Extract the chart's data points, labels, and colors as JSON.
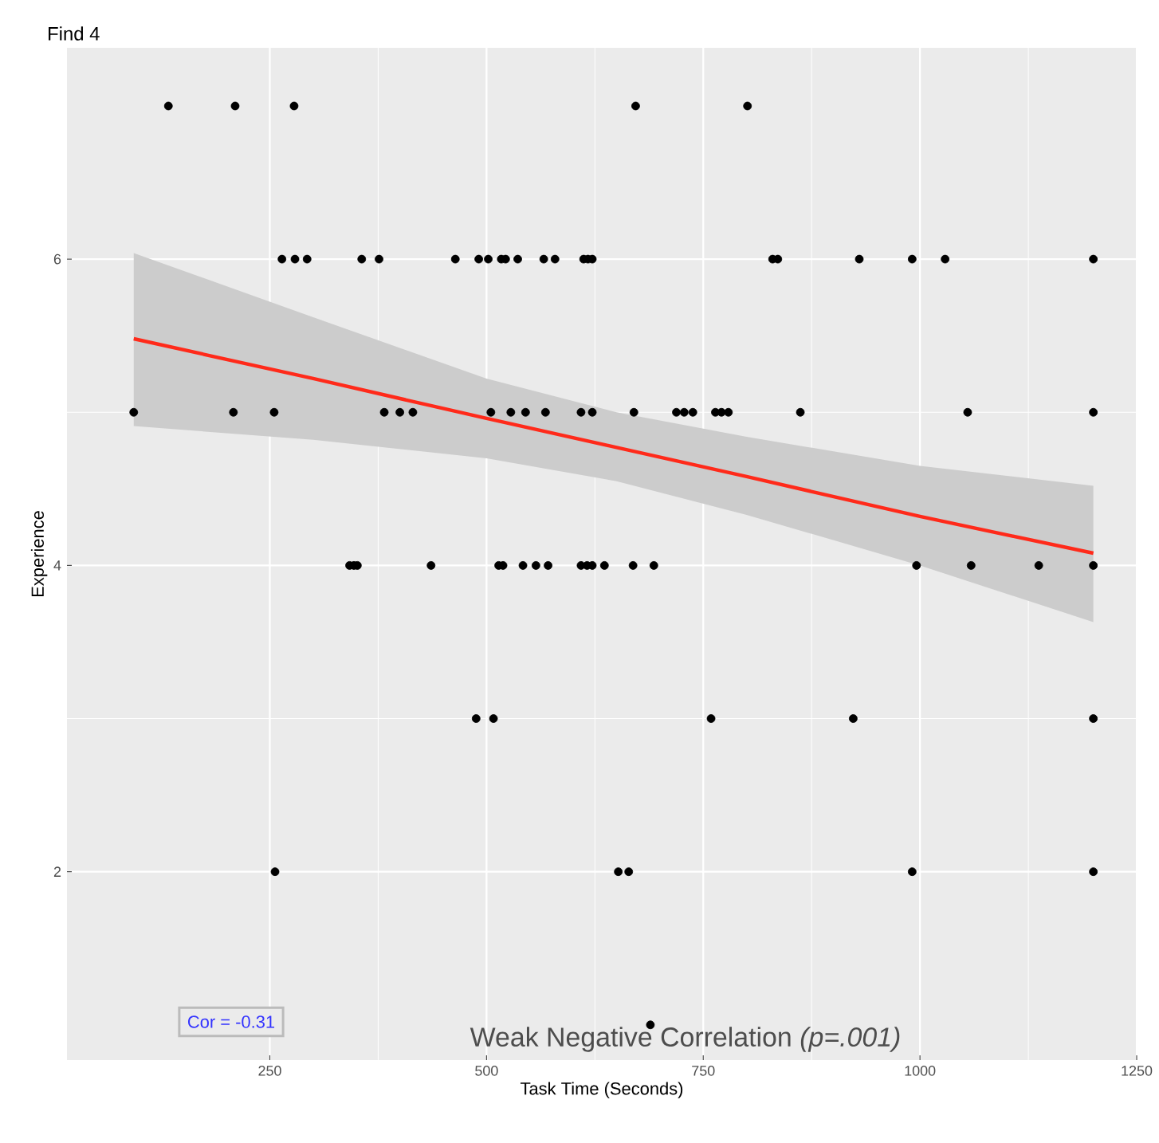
{
  "chart_data": {
    "type": "scatter",
    "title": "Find 4",
    "xlabel": "Task Time (Seconds)",
    "ylabel": "Experience",
    "xlim": [
      16,
      1250
    ],
    "ylim": [
      0.77,
      7.38
    ],
    "xticks": [
      250,
      500,
      750,
      1000,
      1250
    ],
    "yticks": [
      2,
      4,
      6
    ],
    "grid": true,
    "annotations": [
      "Cor = -0.31",
      "Weak Negative Correlation *(p=.001)*"
    ],
    "series": [
      {
        "color": "#000000",
        "marker": "circle",
        "x": [
          133,
          210,
          278,
          672,
          801,
          264,
          279,
          293,
          356,
          376,
          464,
          491,
          502,
          517,
          522,
          536,
          566,
          579,
          612,
          617,
          622,
          830,
          836,
          930,
          991,
          1029,
          1200,
          93,
          208,
          255,
          382,
          400,
          415,
          505,
          528,
          545,
          568,
          609,
          622,
          670,
          719,
          728,
          738,
          764,
          771,
          779,
          862,
          1055,
          1200,
          342,
          347,
          351,
          436,
          514,
          519,
          542,
          557,
          571,
          609,
          616,
          622,
          636,
          669,
          693,
          996,
          1059,
          1137,
          1200,
          488,
          508,
          759,
          923,
          1200,
          256,
          652,
          664,
          991,
          1200,
          689
        ],
        "values": [
          7,
          7,
          7,
          7,
          7,
          6,
          6,
          6,
          6,
          6,
          6,
          6,
          6,
          6,
          6,
          6,
          6,
          6,
          6,
          6,
          6,
          6,
          6,
          6,
          6,
          6,
          6,
          5,
          5,
          5,
          5,
          5,
          5,
          5,
          5,
          5,
          5,
          5,
          5,
          5,
          5,
          5,
          5,
          5,
          5,
          5,
          5,
          5,
          5,
          4,
          4,
          4,
          4,
          4,
          4,
          4,
          4,
          4,
          4,
          4,
          4,
          4,
          4,
          4,
          4,
          4,
          4,
          4,
          3,
          3,
          3,
          3,
          3,
          2,
          2,
          2,
          2,
          2,
          1
        ]
      },
      {
        "type": "line",
        "color": "#ff2a1a",
        "marker": "none",
        "x": [
          93,
          300,
          500,
          650,
          800,
          1000,
          1200
        ],
        "values": [
          5.48,
          5.22,
          4.96,
          4.77,
          4.58,
          4.32,
          4.08
        ],
        "upper": [
          6.04,
          5.62,
          5.22,
          5.0,
          4.84,
          4.65,
          4.52
        ],
        "lower": [
          4.91,
          4.82,
          4.7,
          4.55,
          4.33,
          4.0,
          3.63
        ]
      }
    ]
  }
}
